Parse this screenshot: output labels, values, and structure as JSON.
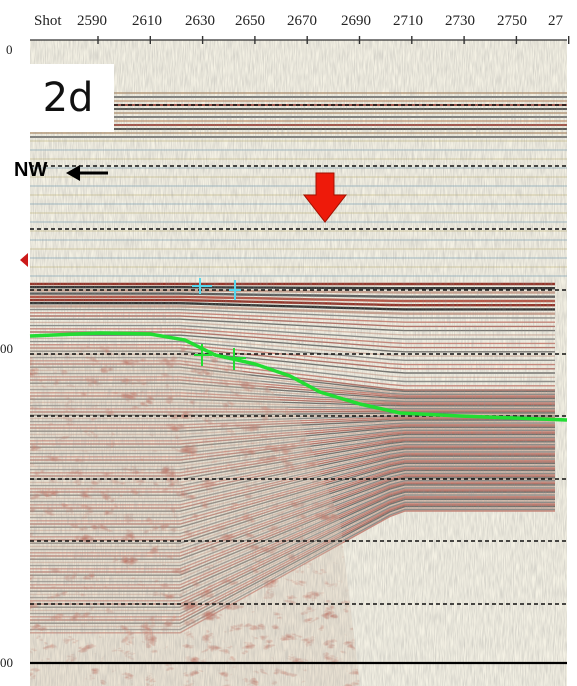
{
  "figure_label": "2d",
  "direction_label": "NW",
  "axis": {
    "shot_title": "Shot",
    "shots": [
      "2590",
      "2610",
      "2630",
      "2650",
      "2670",
      "2690",
      "2710",
      "2730",
      "2750",
      "27"
    ],
    "time_labels": [
      "0",
      "00",
      "00"
    ]
  },
  "colors": {
    "horizon": "#22dd33",
    "arrow": "#ee1a0a",
    "marker": "#55d8ee",
    "left_marker": "#cc1a1a"
  }
}
